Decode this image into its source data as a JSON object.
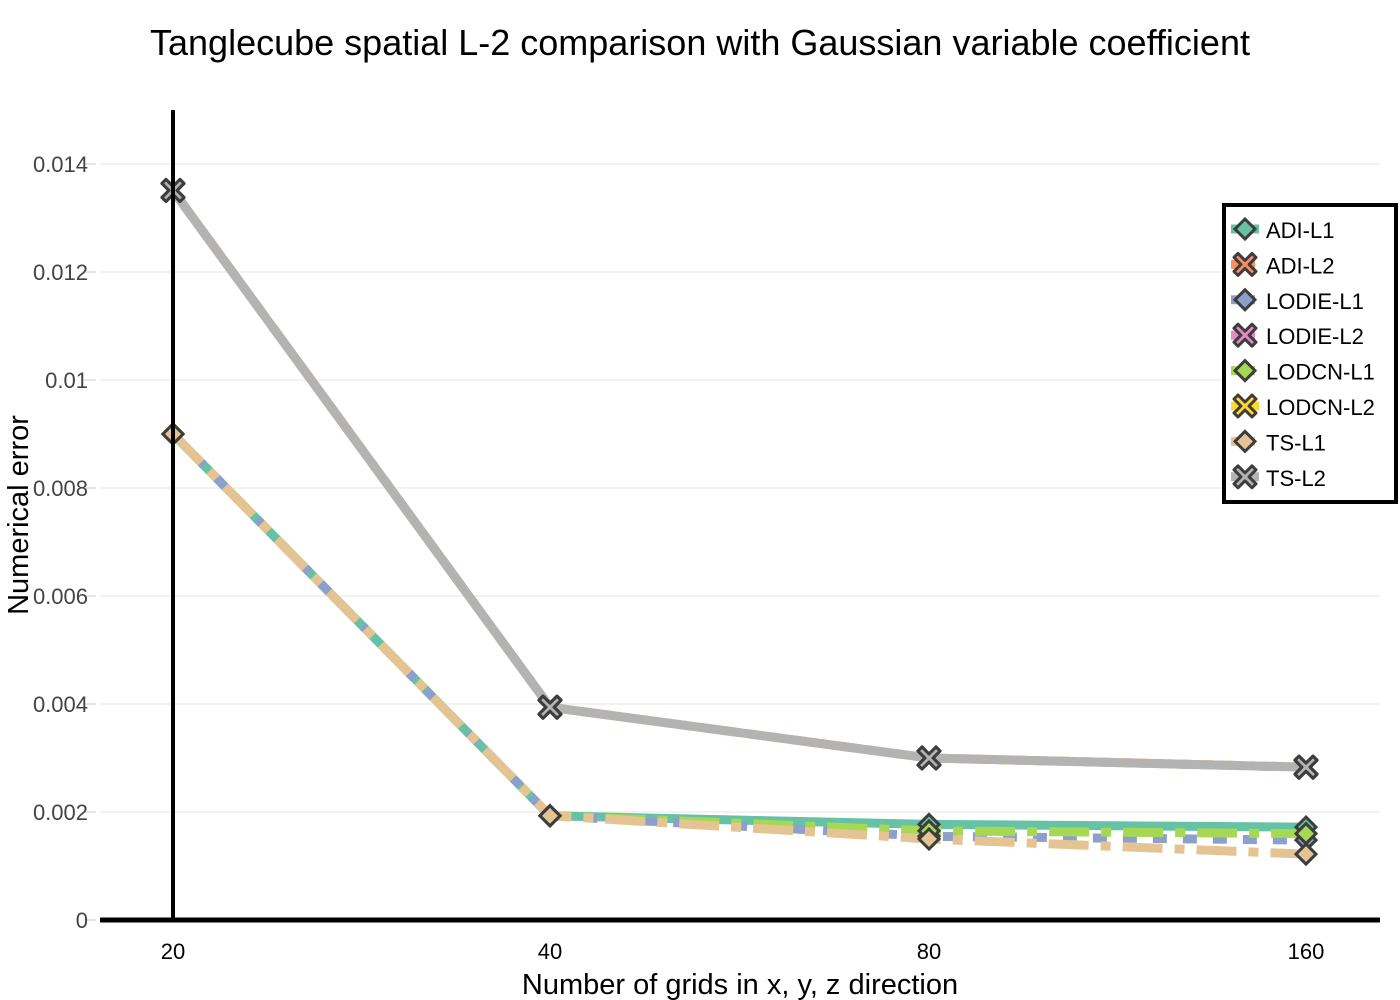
{
  "chart_data": {
    "type": "line",
    "title": "Tanglecube spatial L-2 comparison with Gaussian variable coefficient",
    "xlabel": "Number of grids in x, y, z direction",
    "ylabel": "Numerical error",
    "categories": [
      "20",
      "40",
      "80",
      "160"
    ],
    "x_scale": "categorical",
    "ylim": [
      0,
      0.015
    ],
    "yticks": [
      0,
      0.002,
      0.004,
      0.006,
      0.008,
      0.01,
      0.012,
      0.014
    ],
    "ytick_labels": [
      "0",
      "0.002",
      "0.004",
      "0.006",
      "0.008",
      "0.01",
      "0.012",
      "0.014"
    ],
    "grid": true,
    "legend_position": "right",
    "series": [
      {
        "name": "ADI-L1",
        "values": [
          0.009,
          0.00193,
          0.00177,
          0.00172
        ],
        "color": "#66c2a5",
        "dash": "solid",
        "marker": "diamond"
      },
      {
        "name": "ADI-L2",
        "values": [
          0.01351,
          0.00394,
          0.003,
          0.00283
        ],
        "color": "#fc8d62",
        "dash": "dot",
        "marker": "x"
      },
      {
        "name": "LODIE-L1",
        "values": [
          0.009,
          0.00193,
          0.00155,
          0.00148
        ],
        "color": "#8da0cb",
        "dash": "dash",
        "marker": "diamond"
      },
      {
        "name": "LODIE-L2",
        "values": [
          0.01351,
          0.00394,
          0.003,
          0.00283
        ],
        "color": "#e78ac3",
        "dash": "longdash",
        "marker": "x"
      },
      {
        "name": "LODCN-L1",
        "values": [
          0.009,
          0.00193,
          0.00165,
          0.0016
        ],
        "color": "#a6d854",
        "dash": "dashdot",
        "marker": "diamond"
      },
      {
        "name": "LODCN-L2",
        "values": [
          0.01351,
          0.00394,
          0.003,
          0.00283
        ],
        "color": "#ffd92f",
        "dash": "longdashdot",
        "marker": "x"
      },
      {
        "name": "TS-L1",
        "values": [
          0.009,
          0.00193,
          0.0015,
          0.00122
        ],
        "color": "#e5c494",
        "dash": "dashdot",
        "marker": "diamond"
      },
      {
        "name": "TS-L2",
        "values": [
          0.01351,
          0.00394,
          0.003,
          0.00283
        ],
        "color": "#b3b3b3",
        "dash": "solid",
        "marker": "x"
      }
    ]
  }
}
